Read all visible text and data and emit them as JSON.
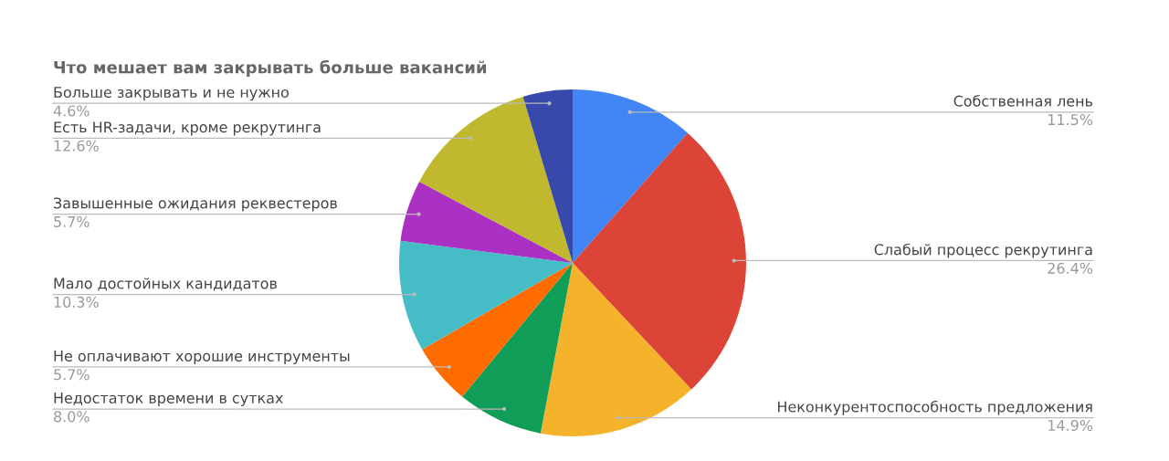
{
  "chart_data": {
    "type": "pie",
    "title": "Что мешает вам закрывать больше вакансий",
    "categories": [
      "Собственная лень",
      "Слабый процесс рекрутинга",
      "Неконкурентоспособность предложения",
      "Недостаток времени в сутках",
      "Не оплачивают хорошие инструменты",
      "Мало достойных кандидатов",
      "Завышенные ожидания реквестеров",
      "Есть HR-задачи, кроме рекрутинга",
      "Больше закрывать и не нужно"
    ],
    "values": [
      11.5,
      26.4,
      14.9,
      8.0,
      5.7,
      10.3,
      5.7,
      12.6,
      4.6
    ],
    "value_labels": [
      "11.5%",
      "26.4%",
      "14.9%",
      "8.0%",
      "5.7%",
      "10.3%",
      "5.7%",
      "12.6%",
      "4.6%"
    ],
    "colors": [
      "#4285f4",
      "#db4437",
      "#f4b32a",
      "#0f9d58",
      "#ff6d01",
      "#46bdc6",
      "#ab30c4",
      "#c0b92f",
      "#3949ab"
    ],
    "legend": false
  }
}
